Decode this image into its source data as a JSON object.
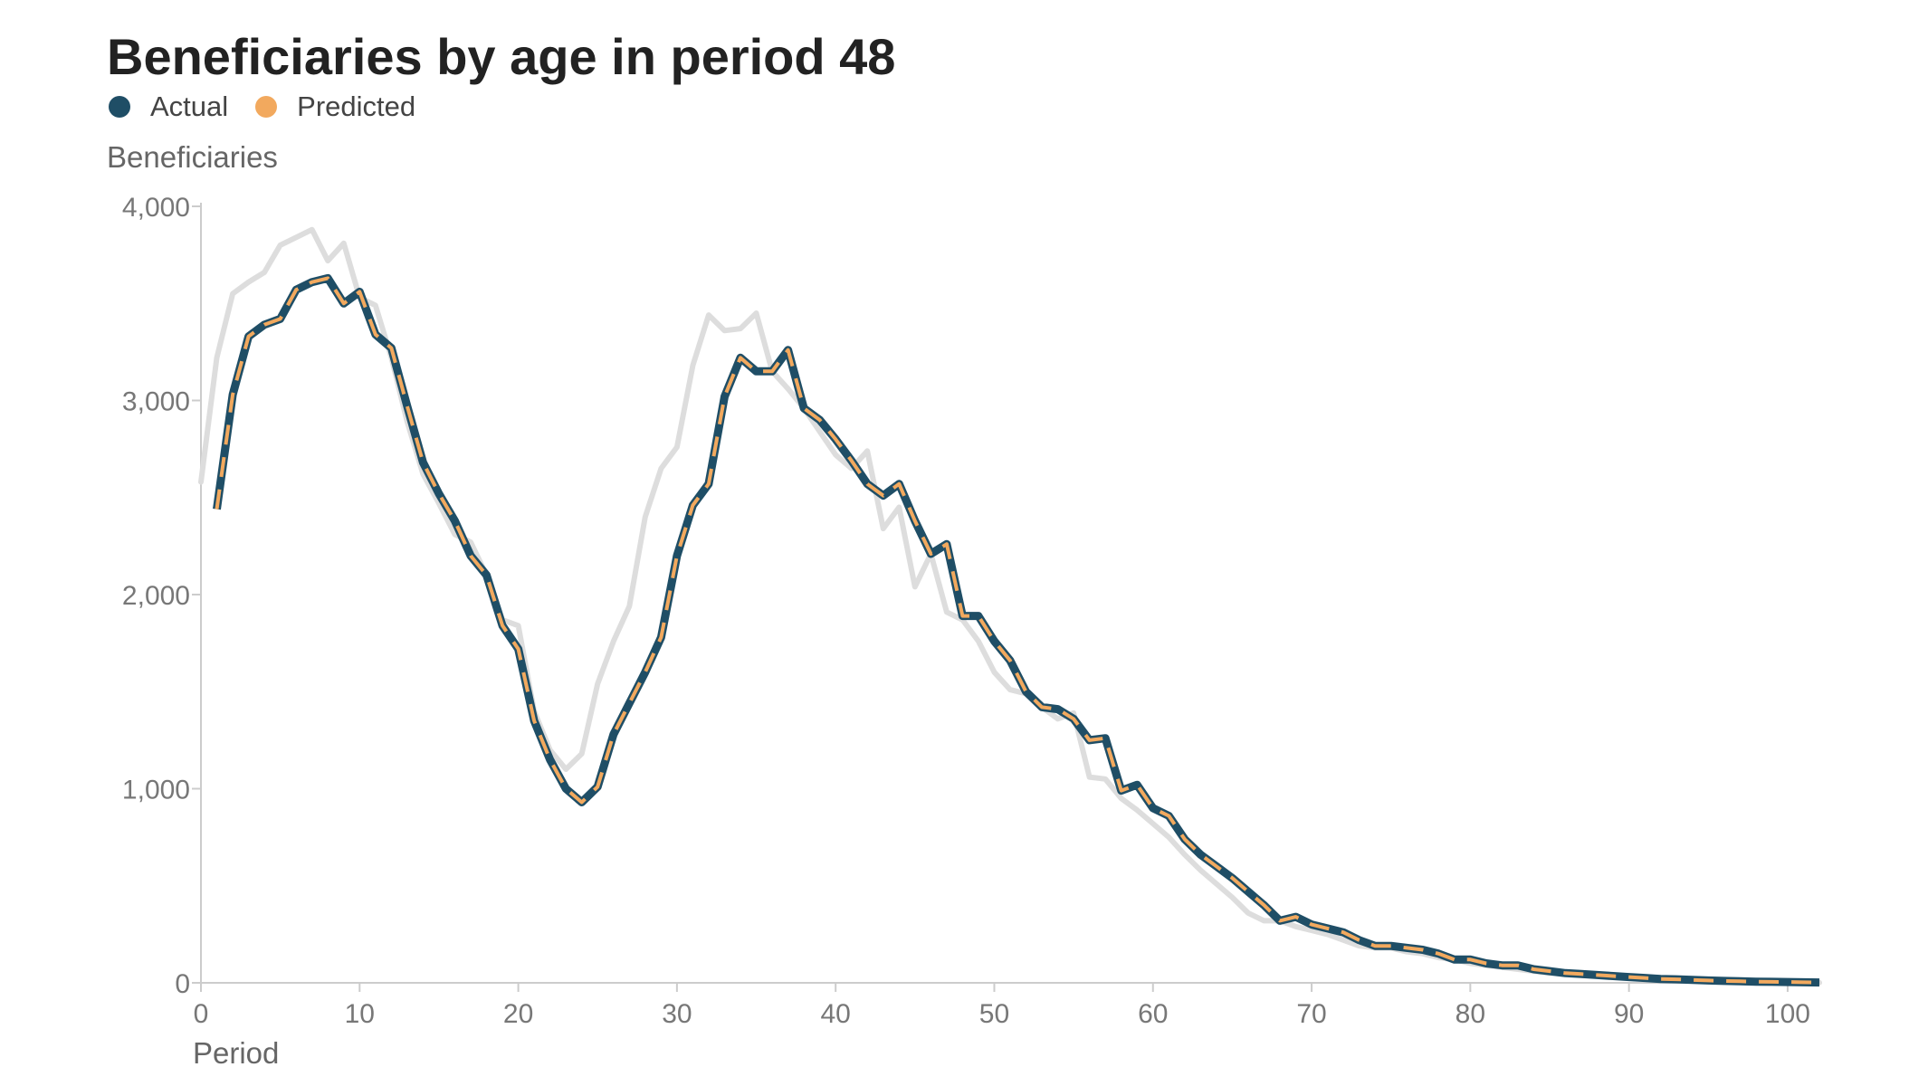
{
  "chart_data": {
    "type": "line",
    "title": "Beneficiaries by age in period 48",
    "xlabel": "Period",
    "ylabel": "Beneficiaries",
    "xlim": [
      0,
      102
    ],
    "ylim": [
      0,
      4000
    ],
    "x_ticks": [
      "0",
      "10",
      "20",
      "30",
      "40",
      "50",
      "60",
      "70",
      "80",
      "90",
      "100"
    ],
    "y_ticks": [
      "0",
      "1,000",
      "2,000",
      "3,000",
      "4,000"
    ],
    "legend": [
      {
        "name": "Actual",
        "color": "#1f4e66"
      },
      {
        "name": "Predicted",
        "color": "#f2a95e"
      }
    ],
    "legend_position": "top-left",
    "grid": false,
    "series": [
      {
        "name": "Actual",
        "color": "#1f4e66",
        "x": [
          1,
          2,
          3,
          4,
          5,
          6,
          7,
          8,
          9,
          10,
          11,
          12,
          13,
          14,
          15,
          16,
          17,
          18,
          19,
          20,
          21,
          22,
          23,
          24,
          25,
          26,
          27,
          28,
          29,
          30,
          31,
          32,
          33,
          34,
          35,
          36,
          37,
          38,
          39,
          40,
          41,
          42,
          43,
          44,
          45,
          46,
          47,
          48,
          49,
          50,
          51,
          52,
          53,
          54,
          55,
          56,
          57,
          58,
          59,
          60,
          61,
          62,
          63,
          64,
          65,
          66,
          67,
          68,
          69,
          70,
          71,
          72,
          73,
          74,
          75,
          76,
          77,
          78,
          79,
          80,
          81,
          82,
          83,
          84,
          85,
          86,
          87,
          88,
          89,
          90,
          91,
          92,
          93,
          94,
          95,
          96,
          97,
          98,
          99,
          100,
          101,
          102
        ],
        "values": [
          2440,
          3030,
          3330,
          3390,
          3420,
          3570,
          3610,
          3630,
          3500,
          3560,
          3340,
          3270,
          2970,
          2680,
          2520,
          2380,
          2200,
          2100,
          1840,
          1720,
          1350,
          1150,
          1000,
          930,
          1010,
          1280,
          1440,
          1600,
          1780,
          2200,
          2460,
          2570,
          3020,
          3220,
          3150,
          3150,
          3260,
          2960,
          2900,
          2800,
          2690,
          2570,
          2510,
          2570,
          2380,
          2210,
          2260,
          1890,
          1890,
          1760,
          1660,
          1500,
          1420,
          1410,
          1360,
          1250,
          1260,
          990,
          1020,
          900,
          860,
          740,
          660,
          600,
          540,
          470,
          400,
          320,
          340,
          300,
          280,
          260,
          220,
          190,
          190,
          180,
          170,
          150,
          120,
          120,
          100,
          90,
          90,
          70,
          60,
          50,
          45,
          40,
          35,
          30,
          25,
          20,
          18,
          15,
          12,
          10,
          8,
          6,
          5,
          4,
          3,
          2
        ]
      },
      {
        "name": "Predicted",
        "color": "#f2a95e",
        "x": [
          1,
          2,
          3,
          4,
          5,
          6,
          7,
          8,
          9,
          10,
          11,
          12,
          13,
          14,
          15,
          16,
          17,
          18,
          19,
          20,
          21,
          22,
          23,
          24,
          25,
          26,
          27,
          28,
          29,
          30,
          31,
          32,
          33,
          34,
          35,
          36,
          37,
          38,
          39,
          40,
          41,
          42,
          43,
          44,
          45,
          46,
          47,
          48,
          49,
          50,
          51,
          52,
          53,
          54,
          55,
          56,
          57,
          58,
          59,
          60,
          61,
          62,
          63,
          64,
          65,
          66,
          67,
          68,
          69,
          70,
          71,
          72,
          73,
          74,
          75,
          76,
          77,
          78,
          79,
          80,
          81,
          82,
          83,
          84,
          85,
          86,
          87,
          88,
          89,
          90,
          91,
          92,
          93,
          94,
          95,
          96,
          97,
          98,
          99,
          100,
          101,
          102
        ],
        "values": [
          2440,
          3030,
          3330,
          3390,
          3420,
          3570,
          3610,
          3630,
          3500,
          3560,
          3340,
          3270,
          2970,
          2680,
          2520,
          2380,
          2200,
          2100,
          1840,
          1720,
          1350,
          1150,
          1000,
          930,
          1010,
          1280,
          1440,
          1600,
          1780,
          2200,
          2460,
          2570,
          3020,
          3220,
          3150,
          3150,
          3260,
          2960,
          2900,
          2800,
          2690,
          2570,
          2510,
          2570,
          2380,
          2210,
          2260,
          1890,
          1890,
          1760,
          1660,
          1500,
          1420,
          1410,
          1360,
          1250,
          1260,
          990,
          1020,
          900,
          860,
          740,
          660,
          600,
          540,
          470,
          400,
          320,
          340,
          300,
          280,
          260,
          220,
          190,
          190,
          180,
          170,
          150,
          120,
          120,
          100,
          90,
          90,
          70,
          60,
          50,
          45,
          40,
          35,
          30,
          25,
          20,
          18,
          15,
          12,
          10,
          8,
          6,
          5,
          4,
          3,
          2
        ]
      },
      {
        "color": "#dddddd",
        "x": [
          0,
          1,
          2,
          3,
          4,
          5,
          6,
          7,
          8,
          9,
          10,
          11,
          12,
          13,
          14,
          15,
          16,
          17,
          18,
          19,
          20,
          21,
          22,
          23,
          24,
          25,
          26,
          27,
          28,
          29,
          30,
          31,
          32,
          33,
          34,
          35,
          36,
          37,
          38,
          39,
          40,
          41,
          42,
          43,
          44,
          45,
          46,
          47,
          48,
          49,
          50,
          51,
          52,
          53,
          54,
          55,
          56,
          57,
          58,
          59,
          60,
          61,
          62,
          63,
          64,
          65,
          66,
          67,
          68,
          69,
          70,
          71,
          72,
          73,
          74,
          75,
          76,
          77,
          78,
          79,
          80,
          81,
          82,
          83,
          84,
          85,
          86,
          87,
          88,
          89,
          90,
          91,
          92,
          93,
          94,
          95,
          96,
          97,
          98,
          99,
          100,
          101,
          102
        ],
        "values": [
          2580,
          3220,
          3550,
          3610,
          3660,
          3800,
          3840,
          3880,
          3720,
          3810,
          3530,
          3490,
          3220,
          2890,
          2620,
          2470,
          2310,
          2270,
          2100,
          1870,
          1840,
          1400,
          1200,
          1100,
          1180,
          1540,
          1760,
          1940,
          2400,
          2650,
          2760,
          3180,
          3440,
          3360,
          3370,
          3450,
          3150,
          3060,
          2960,
          2840,
          2720,
          2650,
          2740,
          2340,
          2450,
          2040,
          2210,
          1910,
          1870,
          1760,
          1600,
          1510,
          1490,
          1420,
          1360,
          1390,
          1060,
          1050,
          950,
          890,
          820,
          750,
          660,
          580,
          510,
          440,
          360,
          320,
          320,
          290,
          270,
          250,
          220,
          190,
          180,
          180,
          160,
          150,
          130,
          120,
          100,
          90,
          80,
          70,
          60,
          50,
          45,
          40,
          35,
          30,
          25,
          20,
          18,
          15,
          12,
          10,
          8,
          6,
          5,
          4,
          3,
          2,
          1
        ]
      }
    ]
  }
}
